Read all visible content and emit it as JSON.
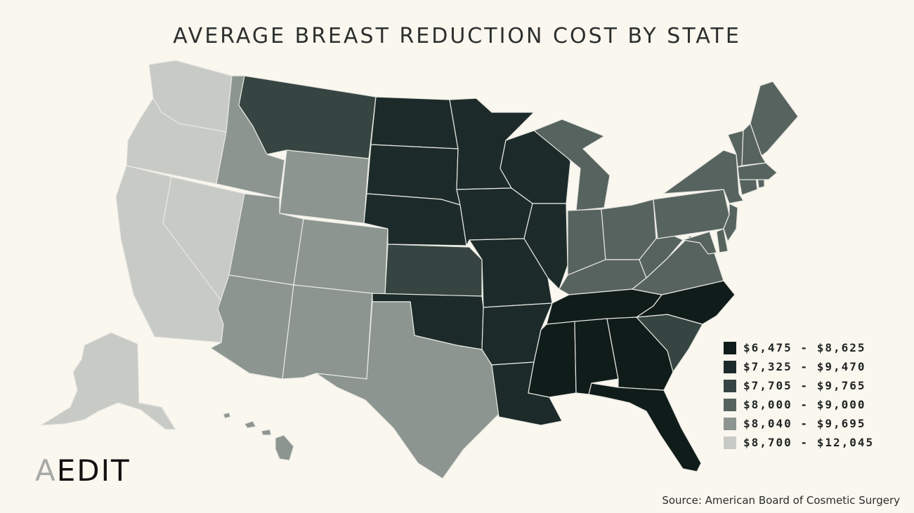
{
  "title": "AVERAGE BREAST REDUCTION COST BY STATE",
  "brand": {
    "first_letter": "A",
    "rest": "EDIT"
  },
  "source": "Source: American Board of Cosmetic Surgery",
  "legend": [
    {
      "label": "$6,475 - $8,625",
      "color": "#101c1a"
    },
    {
      "label": "$7,325 - $9,470",
      "color": "#1c2b29"
    },
    {
      "label": "$7,705 - $9,765",
      "color": "#364541"
    },
    {
      "label": "$8,000 - $9,000",
      "color": "#57635f"
    },
    {
      "label": "$8,040 - $9,695",
      "color": "#8c9590"
    },
    {
      "label": "$8,700 - $12,045",
      "color": "#c8cac6"
    }
  ],
  "states": {
    "WA": 5,
    "OR": 5,
    "CA": 5,
    "NV": 5,
    "AK": 5,
    "HI": 4,
    "ID": 4,
    "UT": 4,
    "AZ": 4,
    "WY": 4,
    "CO": 4,
    "NM": 4,
    "TX": 4,
    "MT": 2,
    "KS": 2,
    "SC": 2,
    "ND": 1,
    "SD": 1,
    "NE": 1,
    "MN": 1,
    "IA": 1,
    "WI": 1,
    "MO": 1,
    "IL": 1,
    "OK": 1,
    "AR": 1,
    "LA": 1,
    "MS": 0,
    "AL": 0,
    "GA": 0,
    "FL": 0,
    "TN": 0,
    "NC": 0,
    "MI": 3,
    "IN": 3,
    "OH": 3,
    "KY": 3,
    "WV": 3,
    "VA": 3,
    "PA": 3,
    "NY": 3,
    "NJ": 3,
    "DE": 3,
    "MD": 3,
    "CT": 3,
    "RI": 3,
    "MA": 3,
    "VT": 3,
    "NH": 3,
    "ME": 3
  }
}
